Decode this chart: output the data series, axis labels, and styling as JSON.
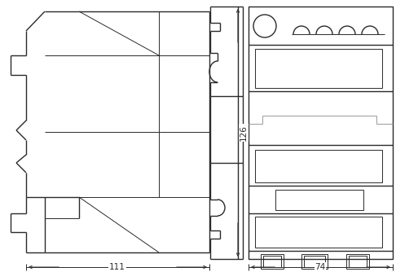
{
  "bg_color": "#ffffff",
  "line_color": "#2a2a2a",
  "gray_color": "#999999",
  "lw": 1.0,
  "lw_thin": 0.7,
  "figsize": [
    4.86,
    3.34
  ],
  "dpi": 100,
  "dim_label_126": "126",
  "dim_label_111": "111",
  "dim_label_74": "74"
}
